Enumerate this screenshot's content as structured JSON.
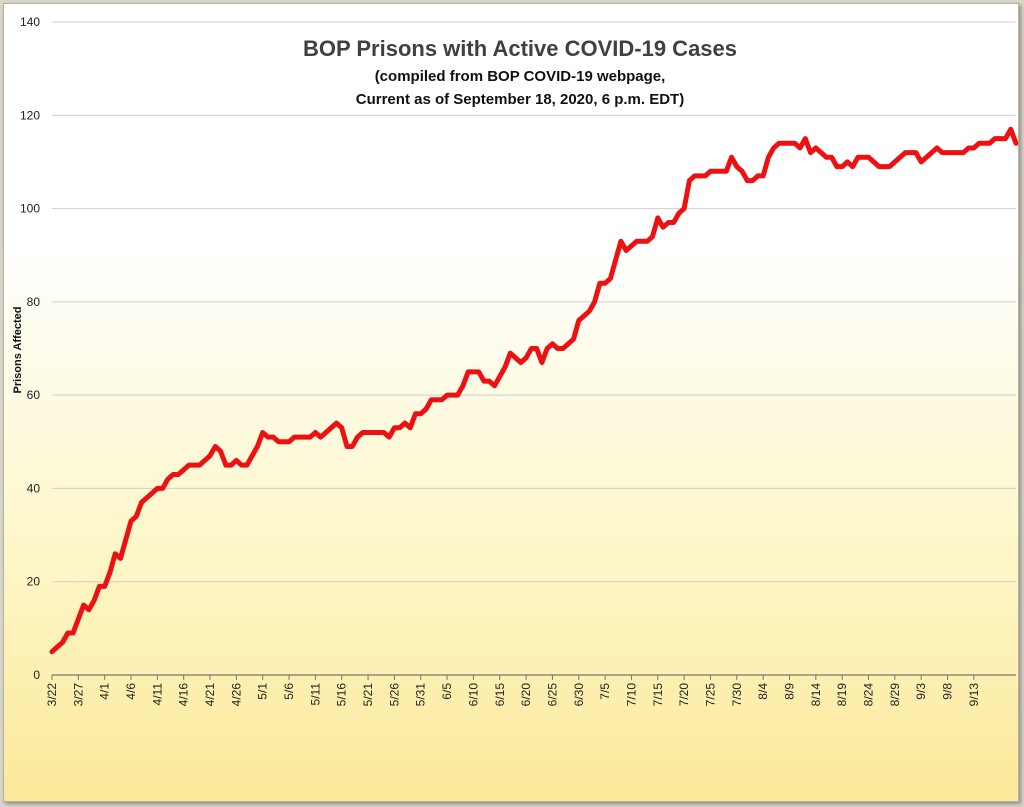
{
  "chart_data": {
    "type": "line",
    "title": "BOP Prisons with Active COVID-19 Cases",
    "subtitle_lines": [
      "(compiled from BOP COVID-19 webpage,",
      "Current as of September 18, 2020, 6 p.m. EDT)"
    ],
    "xlabel": "",
    "ylabel": "Prisons Affected",
    "ylim": [
      0,
      140
    ],
    "yticks": [
      0,
      20,
      40,
      60,
      80,
      100,
      120,
      140
    ],
    "x_tick_labels": [
      "3/22",
      "3/27",
      "4/1",
      "4/6",
      "4/11",
      "4/16",
      "4/21",
      "4/26",
      "5/1",
      "5/6",
      "5/11",
      "5/16",
      "5/21",
      "5/26",
      "5/31",
      "6/5",
      "6/10",
      "6/15",
      "6/20",
      "6/25",
      "6/30",
      "7/5",
      "7/10",
      "7/15",
      "7/20",
      "7/25",
      "7/30",
      "8/4",
      "8/9",
      "8/14",
      "8/19",
      "8/24",
      "8/29",
      "9/3",
      "9/8",
      "9/13"
    ],
    "grid": true,
    "line_color": "#ee1111",
    "series": [
      {
        "name": "",
        "x_start": "3/22",
        "x_interval_days": 1,
        "values": [
          5,
          6,
          7,
          9,
          9,
          12,
          15,
          14,
          16,
          19,
          19,
          22,
          26,
          25,
          29,
          33,
          34,
          37,
          38,
          39,
          40,
          40,
          42,
          43,
          43,
          44,
          45,
          45,
          45,
          46,
          47,
          49,
          48,
          45,
          45,
          46,
          45,
          45,
          47,
          49,
          52,
          51,
          51,
          50,
          50,
          50,
          51,
          51,
          51,
          51,
          52,
          51,
          52,
          53,
          54,
          53,
          49,
          49,
          51,
          52,
          52,
          52,
          52,
          52,
          51,
          53,
          53,
          54,
          53,
          56,
          56,
          57,
          59,
          59,
          59,
          60,
          60,
          60,
          62,
          65,
          65,
          65,
          63,
          63,
          62,
          64,
          66,
          69,
          68,
          67,
          68,
          70,
          70,
          67,
          70,
          71,
          70,
          70,
          71,
          72,
          76,
          77,
          78,
          80,
          84,
          84,
          85,
          89,
          93,
          91,
          92,
          93,
          93,
          93,
          94,
          98,
          96,
          97,
          97,
          99,
          100,
          106,
          107,
          107,
          107,
          108,
          108,
          108,
          108,
          111,
          109,
          108,
          106,
          106,
          107,
          107,
          111,
          113,
          114,
          114,
          114,
          114,
          113,
          115,
          112,
          113,
          112,
          111,
          111,
          109,
          109,
          110,
          109,
          111,
          111,
          111,
          110,
          109,
          109,
          109,
          110,
          111,
          112,
          112,
          112,
          110,
          111,
          112,
          113,
          112,
          112,
          112,
          112,
          112,
          113,
          113,
          114,
          114,
          114,
          115,
          115,
          115,
          117,
          114
        ]
      }
    ]
  }
}
